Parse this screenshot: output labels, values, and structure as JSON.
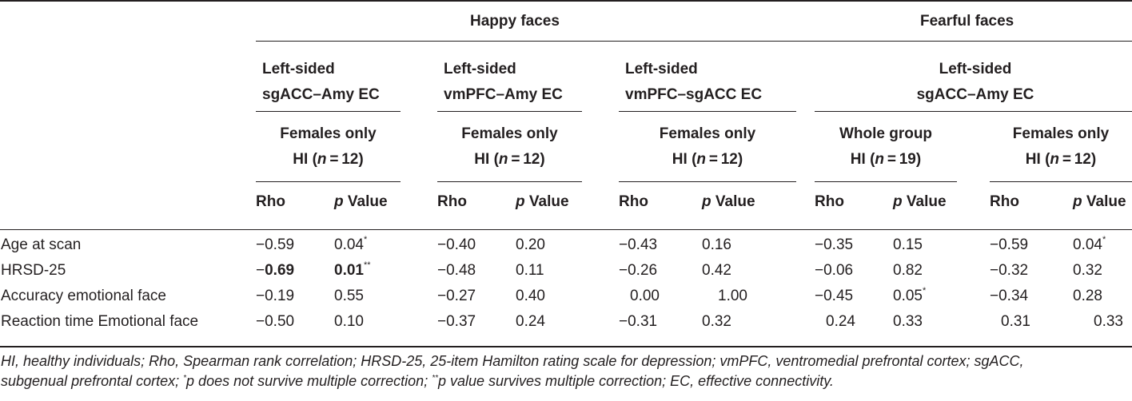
{
  "groups": {
    "happy": "Happy faces",
    "fearful": "Fearful faces"
  },
  "connectivity": {
    "sgacc_amy": [
      "Left-sided",
      "sgACC–Amy EC"
    ],
    "vmpfc_amy": [
      "Left-sided",
      "vmPFC–Amy EC"
    ],
    "vmpfc_sgacc": [
      "Left-sided",
      "vmPFC–sgACC EC"
    ],
    "fearful_sgacc_amy": [
      "Left-sided",
      "sgACC–Amy EC"
    ]
  },
  "samples": {
    "s1": {
      "line1": "Females only",
      "pre": "HI (",
      "n": "n",
      "post": " = 12)"
    },
    "s2": {
      "line1": "Females only",
      "pre": "HI (",
      "n": "n",
      "post": " = 12)"
    },
    "s3": {
      "line1": "Females only",
      "pre": "HI (",
      "n": "n",
      "post": " = 12)"
    },
    "s4": {
      "line1": "Whole group",
      "pre": "HI (",
      "n": "n",
      "post": " = 19)"
    },
    "s5": {
      "line1": "Females only",
      "pre": "HI (",
      "n": "n",
      "post": " = 12)"
    }
  },
  "col_headers": {
    "rho": "Rho",
    "p": "p",
    "value": " Value"
  },
  "rows": [
    {
      "label": "Age at scan",
      "cells": [
        {
          "v": "−0.59"
        },
        {
          "v": "0.04",
          "sup": "*"
        },
        {
          "v": "−0.40"
        },
        {
          "v": "0.20"
        },
        {
          "v": "−0.43"
        },
        {
          "v": "0.16"
        },
        {
          "v": "−0.35"
        },
        {
          "v": "0.15"
        },
        {
          "v": "−0.59"
        },
        {
          "v": "0.04",
          "sup": "*"
        }
      ]
    },
    {
      "label": "HRSD-25",
      "cells": [
        {
          "sign": "−",
          "v": "0.69",
          "bold": true
        },
        {
          "v": "0.01",
          "sup": "**",
          "bold": true
        },
        {
          "v": "−0.48"
        },
        {
          "v": "0.11"
        },
        {
          "v": "−0.26"
        },
        {
          "v": "0.42"
        },
        {
          "v": "−0.06"
        },
        {
          "v": "0.82"
        },
        {
          "v": "−0.32"
        },
        {
          "v": "0.32"
        }
      ]
    },
    {
      "label": "Accuracy emotional face",
      "cells": [
        {
          "v": "−0.19"
        },
        {
          "v": "0.55"
        },
        {
          "v": "−0.27"
        },
        {
          "v": "0.40"
        },
        {
          "v": "0.00"
        },
        {
          "v": "1.00"
        },
        {
          "v": "−0.45"
        },
        {
          "v": "0.05",
          "sup": "*"
        },
        {
          "v": "−0.34"
        },
        {
          "v": "0.28"
        }
      ]
    },
    {
      "label": "Reaction time Emotional face",
      "cells": [
        {
          "v": "−0.50"
        },
        {
          "v": "0.10"
        },
        {
          "v": "−0.37"
        },
        {
          "v": "0.24"
        },
        {
          "v": "−0.31"
        },
        {
          "v": "0.32"
        },
        {
          "v": "0.24"
        },
        {
          "v": "0.33"
        },
        {
          "v": "0.31"
        },
        {
          "v": "0.33"
        }
      ]
    }
  ],
  "footnote": {
    "line1": "HI, healthy individuals; Rho, Spearman rank correlation; HRSD-25, 25-item Hamilton rating scale for depression; vmPFC, ventromedial prefrontal cortex; sgACC,",
    "line2_a": "subgenual prefrontal cortex; ",
    "sup1": "*",
    "line2_b": "p does not survive multiple correction; ",
    "sup2": "**",
    "line2_c": "p value survives multiple correction; EC, effective connectivity."
  }
}
